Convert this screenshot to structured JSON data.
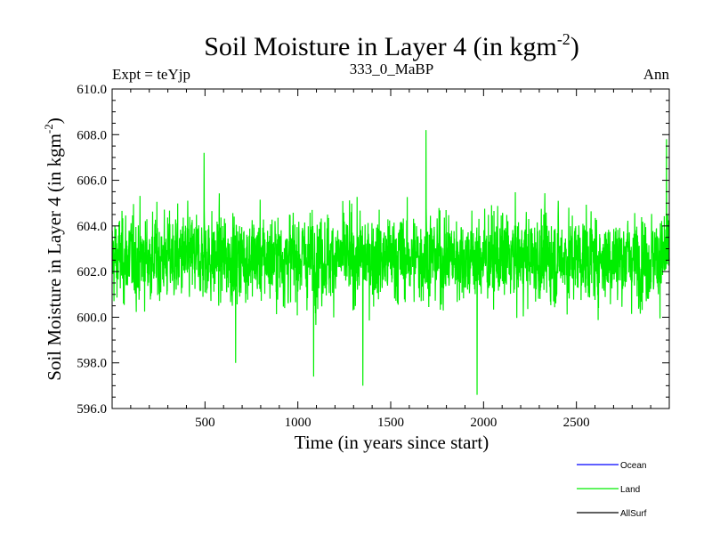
{
  "chart_data": {
    "type": "line",
    "title": "Soil Moisture in Layer 4 (in kgm",
    "title_sup": "-2",
    "title_close": ")",
    "subtitle_left": "Expt = teYjp",
    "subtitle_center": "333_0_MaBP",
    "subtitle_right": "Ann",
    "xlabel": "Time (in years since start)",
    "ylabel": "Soil Moisture in Layer 4 (in kgm",
    "ylabel_sup": "-2",
    "ylabel_close": ")",
    "xlim": [
      0,
      3000
    ],
    "ylim": [
      596.0,
      610.0
    ],
    "xticks": [
      500,
      1000,
      1500,
      2000,
      2500
    ],
    "xtick_labels": [
      "500",
      "1000",
      "1500",
      "2000",
      "2500"
    ],
    "yticks": [
      596,
      598,
      600,
      602,
      604,
      606,
      608,
      610
    ],
    "ytick_labels": [
      "596.0",
      "598.0",
      "600.0",
      "602.0",
      "604.0",
      "606.0",
      "608.0",
      "610.0"
    ],
    "series": [
      {
        "name": "Land",
        "color": "#00ee00",
        "mean": 602.6,
        "spread": 1.5,
        "extremes": [
          {
            "x": 1085,
            "y": 597.4
          },
          {
            "x": 1350,
            "y": 597.0
          },
          {
            "x": 1690,
            "y": 608.2
          },
          {
            "x": 1965,
            "y": 596.6
          },
          {
            "x": 2985,
            "y": 607.8
          },
          {
            "x": 665,
            "y": 598.0
          },
          {
            "x": 495,
            "y": 607.2
          }
        ]
      }
    ],
    "legend": [
      {
        "name": "Ocean",
        "color": "#0000ff"
      },
      {
        "name": "Land",
        "color": "#00ee00"
      },
      {
        "name": "AllSurf",
        "color": "#000000"
      }
    ]
  }
}
